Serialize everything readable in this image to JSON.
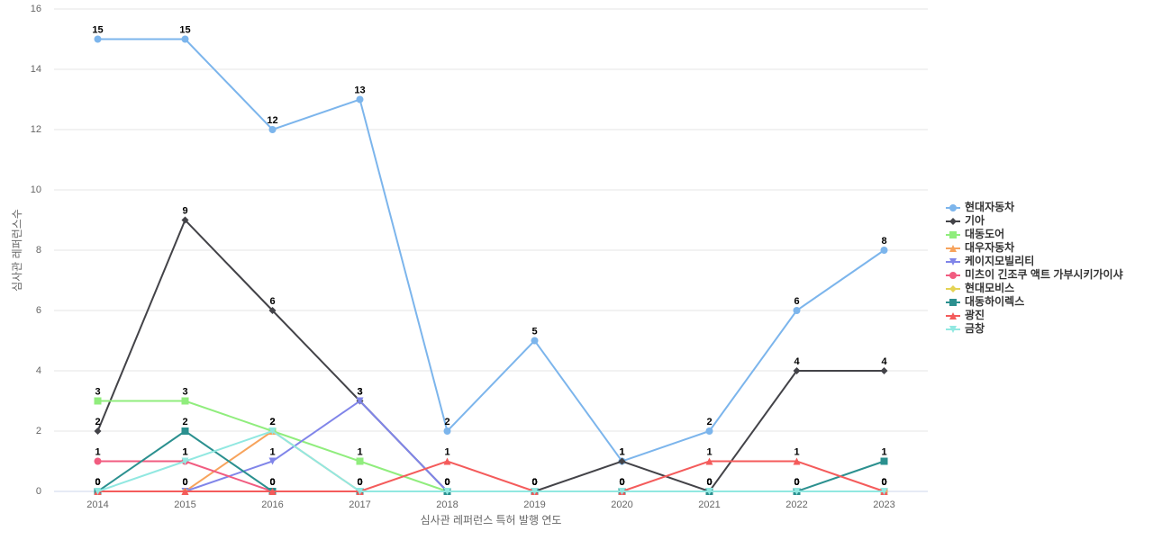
{
  "chart_data": {
    "type": "line",
    "x_label": "심사관 레퍼런스 특허 발행 연도",
    "y_label": "심사관 레퍼런스수",
    "categories": [
      "2014",
      "2015",
      "2016",
      "2017",
      "2018",
      "2019",
      "2020",
      "2021",
      "2022",
      "2023"
    ],
    "ylim": [
      0,
      16
    ],
    "yticks": [
      0,
      2,
      4,
      6,
      8,
      10,
      12,
      14,
      16
    ],
    "grid": true,
    "legend": "right",
    "series": [
      {
        "name": "현대자동차",
        "color": "#7cb5ec",
        "marker": "circle",
        "values": [
          15,
          15,
          12,
          13,
          2,
          5,
          1,
          2,
          6,
          8
        ]
      },
      {
        "name": "기아",
        "color": "#434348",
        "marker": "diamond",
        "values": [
          2,
          9,
          6,
          3,
          0,
          0,
          1,
          0,
          4,
          4
        ]
      },
      {
        "name": "대동도어",
        "color": "#90ed7d",
        "marker": "square",
        "values": [
          3,
          3,
          2,
          1,
          0,
          0,
          0,
          0,
          0,
          0
        ]
      },
      {
        "name": "대우자동차",
        "color": "#f7a35c",
        "marker": "triangle",
        "values": [
          0,
          0,
          2,
          0,
          0,
          0,
          0,
          0,
          0,
          0
        ]
      },
      {
        "name": "케이지모빌리티",
        "color": "#8085e9",
        "marker": "triangle-down",
        "values": [
          0,
          0,
          1,
          3,
          0,
          0,
          0,
          0,
          0,
          0
        ]
      },
      {
        "name": "미츠이 긴조쿠 액트 가부시키가이샤",
        "color": "#f15c80",
        "marker": "circle",
        "values": [
          1,
          1,
          0,
          0,
          0,
          0,
          0,
          0,
          0,
          0
        ]
      },
      {
        "name": "현대모비스",
        "color": "#e4d354",
        "marker": "diamond",
        "values": [
          0,
          0,
          0,
          0,
          0,
          0,
          0,
          0,
          0,
          0
        ]
      },
      {
        "name": "대동하이렉스",
        "color": "#2b908f",
        "marker": "square",
        "values": [
          0,
          2,
          0,
          0,
          0,
          0,
          0,
          0,
          0,
          1
        ]
      },
      {
        "name": "광진",
        "color": "#f45b5b",
        "marker": "triangle",
        "values": [
          0,
          0,
          0,
          0,
          1,
          0,
          0,
          1,
          1,
          0
        ]
      },
      {
        "name": "금창",
        "color": "#91e8e1",
        "marker": "triangle-down",
        "values": [
          0,
          1,
          2,
          0,
          0,
          0,
          0,
          0,
          0,
          0
        ]
      }
    ]
  }
}
